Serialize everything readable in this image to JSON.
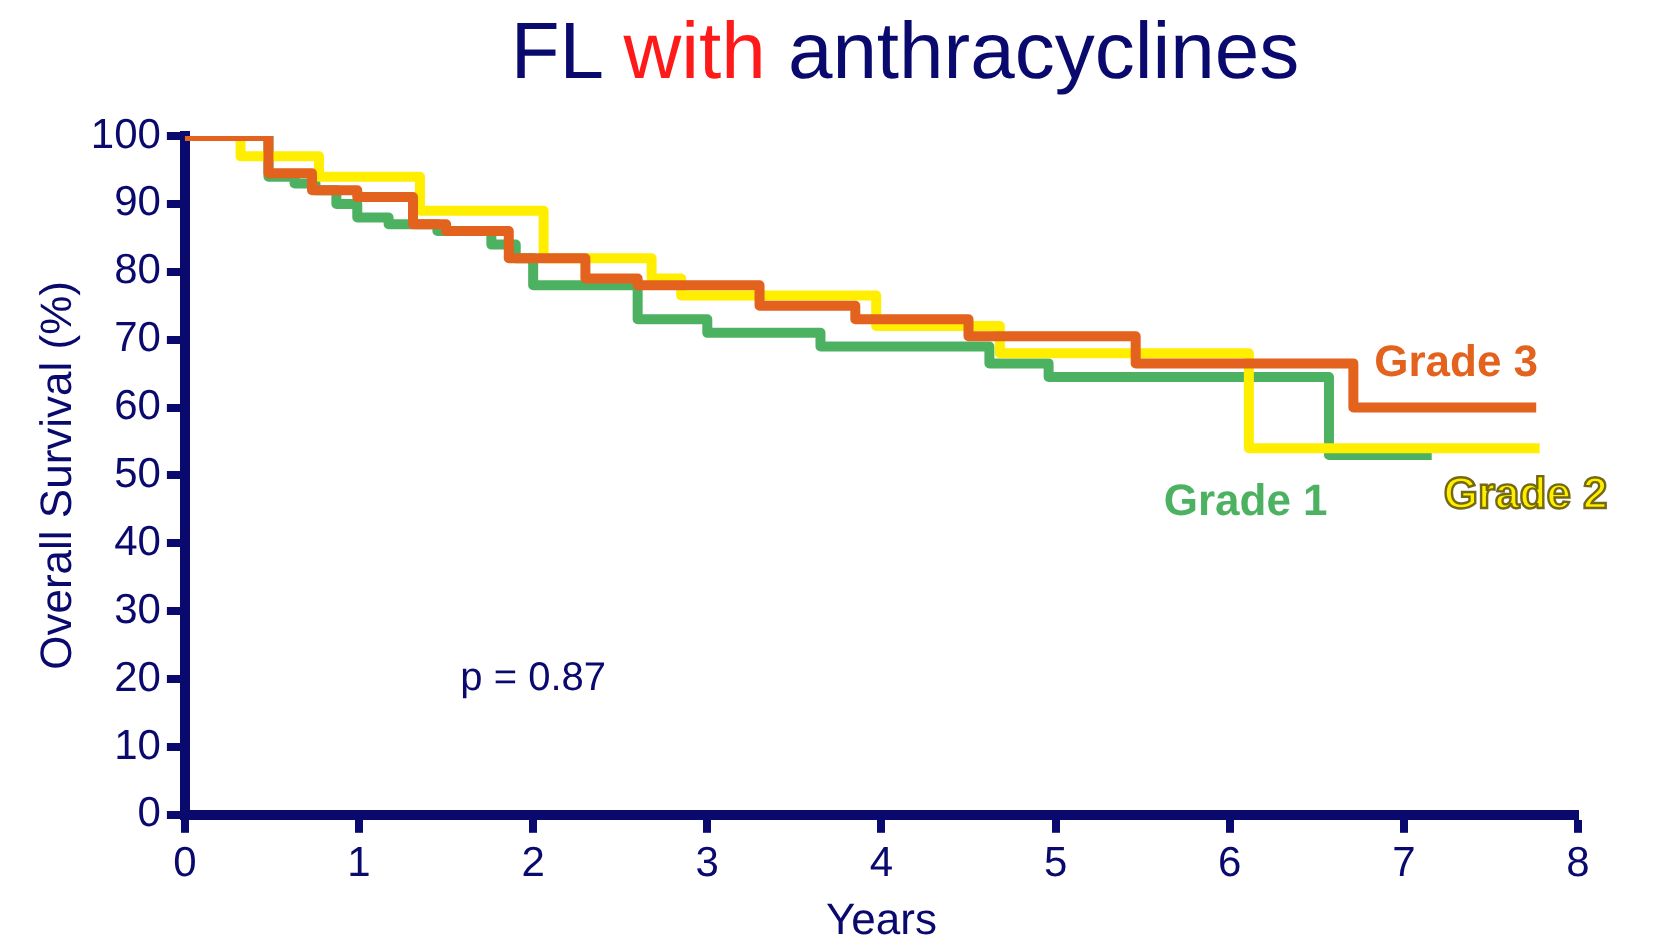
{
  "chart_data": {
    "type": "step",
    "title": "FL with anthracyclines",
    "xlabel": "Years",
    "ylabel": "Overall Survival (%)",
    "xlim": [
      0,
      8
    ],
    "xticks": [
      0,
      1,
      2,
      3,
      4,
      5,
      6,
      7,
      8
    ],
    "ylim": [
      0,
      100
    ],
    "yticks": [
      0,
      10,
      20,
      30,
      40,
      50,
      60,
      70,
      80,
      90,
      100
    ],
    "grid": false,
    "legend": false,
    "marker": "none",
    "line_style": "solid",
    "annotations": [
      "p = 0.87"
    ],
    "series": [
      {
        "name": "Grade 1",
        "color": "#4cb262",
        "x": [
          0,
          0.48,
          0.63,
          0.75,
          0.87,
          0.99,
          1.17,
          1.45,
          1.76,
          1.9,
          2.0,
          2.6,
          3.0,
          3.65,
          4.62,
          4.96,
          6.57,
          7.16
        ],
        "values": [
          100,
          94,
          93,
          92,
          90,
          88,
          87,
          86,
          84,
          82,
          78,
          73,
          71,
          69,
          66.5,
          64.5,
          53,
          53
        ]
      },
      {
        "name": "Grade 2",
        "color": "#ffee00",
        "x": [
          0,
          0.32,
          0.77,
          1.35,
          2.06,
          2.68,
          2.85,
          3.97,
          4.68,
          6.11,
          7.78
        ],
        "values": [
          100,
          97,
          94,
          89,
          82,
          79,
          76.5,
          72,
          68,
          54,
          54
        ]
      },
      {
        "name": "Grade 3",
        "color": "#e2621e",
        "x": [
          0,
          0.48,
          0.73,
          0.99,
          1.31,
          1.5,
          1.86,
          2.3,
          2.6,
          3.3,
          3.85,
          4.5,
          5.46,
          6.71,
          7.76
        ],
        "values": [
          100,
          94.5,
          92,
          91,
          87,
          86,
          82,
          79,
          78,
          75,
          73,
          70.5,
          66.5,
          60,
          60
        ]
      }
    ]
  }
}
